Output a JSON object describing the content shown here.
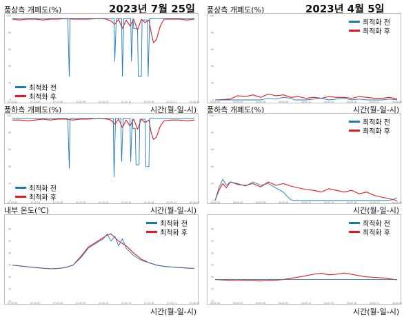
{
  "colors": {
    "before": "#1f77b4",
    "after": "#e8171f",
    "frame": "#bdbdbd"
  },
  "dates": [
    "2023년 7월 25일",
    "2023년 4월 5일"
  ],
  "legend": [
    "최적화 전",
    "최적화 후"
  ],
  "xlabel": "시간(월-일-시)",
  "chart_data": [
    {
      "type": "line",
      "title": "풍상측 개폐도(%)",
      "xlabel": "시간(월-일-시)",
      "ylim": [
        0,
        100
      ],
      "x_ticks": [
        "07-25 00",
        "07-25 03",
        "07-25 06",
        "07-25 09",
        "07-25 12",
        "07-25 15",
        "07-25 18",
        "07-25 21",
        "07-26 00"
      ],
      "y_ticks": [
        0,
        20,
        40,
        60,
        80,
        100
      ],
      "series": [
        {
          "name": "최적화 전",
          "x": [
            0,
            7.2,
            7.3,
            7.5,
            7.6,
            12,
            13.4,
            13.5,
            13.7,
            13.8,
            14.4,
            14.5,
            14.7,
            14.8,
            15.6,
            15.7,
            15.9,
            16,
            16.5,
            16.6,
            17,
            17.1,
            17.8,
            17.9,
            18.1,
            18.2,
            19,
            24
          ],
          "y": [
            97,
            97,
            97,
            28,
            97,
            97,
            97,
            46,
            97,
            97,
            97,
            28,
            97,
            97,
            97,
            46,
            97,
            85,
            85,
            28,
            28,
            95,
            95,
            28,
            97,
            97,
            97,
            97
          ]
        },
        {
          "name": "최적화 후",
          "x": [
            0,
            1,
            2,
            3,
            4,
            5,
            6,
            7,
            8,
            9,
            10,
            11,
            12,
            13,
            13.5,
            14,
            14.5,
            15,
            15.5,
            16,
            16.5,
            17,
            17.5,
            18,
            18.3,
            18.6,
            19,
            19.5,
            20,
            21,
            22,
            23,
            24
          ],
          "y": [
            96,
            95,
            96,
            96,
            95,
            96,
            96,
            97,
            96,
            96,
            96,
            97,
            97,
            94,
            90,
            96,
            85,
            95,
            88,
            96,
            83,
            96,
            92,
            95,
            80,
            68,
            72,
            88,
            96,
            96,
            96,
            95,
            96
          ]
        }
      ]
    },
    {
      "type": "line",
      "title": "풍상측 개폐도(%)",
      "xlabel": "시간(월-일-시)",
      "ylim": [
        0,
        100
      ],
      "x_ticks": [
        "04-05 00",
        "04-05 03",
        "04-05 06",
        "04-05 09",
        "04-05 12",
        "04-05 15",
        "04-05 18",
        "04-05 21",
        "04-06 00"
      ],
      "y_ticks": [
        0,
        20,
        40,
        60,
        80,
        100
      ],
      "series": [
        {
          "name": "최적화 전",
          "x": [
            0,
            6,
            7,
            8,
            9,
            10,
            10.5,
            11,
            12,
            13,
            14,
            15,
            16,
            17,
            18,
            19,
            20,
            21,
            22,
            23,
            24
          ],
          "y": [
            0,
            0,
            2,
            1,
            3,
            2,
            0,
            0,
            0,
            1,
            2,
            0,
            1,
            2,
            0,
            1,
            0,
            0,
            0,
            1,
            0
          ]
        },
        {
          "name": "최적화 후",
          "x": [
            0,
            2,
            3,
            4,
            5,
            6,
            7,
            8,
            9,
            10,
            11,
            12,
            13,
            14,
            15,
            16,
            17,
            18,
            19,
            20,
            21,
            22,
            23,
            24
          ],
          "y": [
            0,
            1,
            5,
            4,
            6,
            3,
            7,
            5,
            6,
            3,
            4,
            2,
            3,
            2,
            4,
            3,
            3,
            2,
            4,
            3,
            2,
            2,
            3,
            1
          ]
        }
      ]
    },
    {
      "type": "line",
      "title": "풍하측 개폐도(%)",
      "xlabel": "시간(월-일-시)",
      "ylim": [
        0,
        100
      ],
      "x_ticks": [
        "07-25 00",
        "07-25 03",
        "07-25 06",
        "07-25 09",
        "07-25 12",
        "07-25 15",
        "07-25 18",
        "07-25 21",
        "07-26 00"
      ],
      "y_ticks": [
        0,
        20,
        40,
        60,
        80,
        100
      ],
      "series": [
        {
          "name": "최적화 전",
          "x": [
            0,
            7.2,
            7.3,
            7.5,
            7.6,
            13,
            13.3,
            13.4,
            13.6,
            13.7,
            14.3,
            14.4,
            14.6,
            14.7,
            15.5,
            15.6,
            15.8,
            15.9,
            16.2,
            16.3,
            16.7,
            16.8,
            17.5,
            17.6,
            18,
            18.1,
            19,
            24
          ],
          "y": [
            97,
            97,
            97,
            38,
            97,
            97,
            97,
            28,
            97,
            97,
            97,
            46,
            97,
            97,
            97,
            46,
            97,
            85,
            85,
            42,
            42,
            96,
            96,
            40,
            40,
            97,
            97,
            97
          ]
        },
        {
          "name": "최적화 후",
          "x": [
            0,
            1,
            2,
            3,
            4,
            5,
            6,
            7,
            8,
            9,
            10,
            11,
            12,
            13,
            13.5,
            14,
            14.5,
            15,
            15.5,
            16,
            16.5,
            17,
            17.5,
            18,
            18.3,
            18.6,
            19,
            19.5,
            20,
            21,
            22,
            23,
            24
          ],
          "y": [
            95,
            95,
            94,
            95,
            96,
            95,
            96,
            96,
            95,
            96,
            96,
            97,
            97,
            95,
            90,
            96,
            86,
            95,
            88,
            96,
            84,
            96,
            92,
            95,
            80,
            72,
            75,
            88,
            94,
            95,
            95,
            94,
            95
          ]
        }
      ]
    },
    {
      "type": "line",
      "title": "풍하측 개폐도(%)",
      "xlabel": "시간(월-일-시)",
      "ylim": [
        0,
        100
      ],
      "x_ticks": [
        "04-05 00",
        "04-05 03",
        "04-05 06",
        "04-05 09",
        "04-05 12",
        "04-05 15",
        "04-05 18",
        "04-05 21",
        "04-06 00"
      ],
      "y_ticks": [
        0,
        20,
        40,
        60,
        80,
        100
      ],
      "series": [
        {
          "name": "최적화 전",
          "x": [
            0,
            0.5,
            1,
            1.5,
            2,
            3,
            4,
            5,
            6,
            7,
            8,
            9,
            9.5,
            10,
            10.5,
            11,
            12,
            13,
            14,
            15,
            16,
            17,
            18,
            19,
            20,
            21,
            22,
            23,
            24
          ],
          "y": [
            0,
            15,
            25,
            18,
            22,
            20,
            17,
            22,
            18,
            20,
            15,
            10,
            5,
            1,
            0,
            0,
            0,
            0,
            0,
            0,
            0,
            0,
            0,
            0,
            0,
            0,
            0,
            0,
            3
          ]
        },
        {
          "name": "최적화 후",
          "x": [
            0,
            0.5,
            1,
            1.5,
            2,
            3,
            4,
            5,
            6,
            7,
            8,
            9,
            10,
            11,
            12,
            13,
            14,
            15,
            16,
            17,
            18,
            19,
            20,
            21,
            22,
            23,
            24
          ],
          "y": [
            0,
            12,
            20,
            15,
            22,
            19,
            18,
            20,
            16,
            22,
            18,
            20,
            17,
            15,
            13,
            12,
            10,
            14,
            12,
            10,
            12,
            8,
            10,
            6,
            4,
            2,
            0
          ]
        }
      ]
    },
    {
      "type": "line",
      "title": "내부 온도(℃)",
      "xlabel": "시간(월-일-시)",
      "ylim": [
        10,
        45
      ],
      "x_ticks": [
        "07-25 00",
        "07-25 03",
        "07-25 06",
        "07-25 09",
        "07-25 12",
        "07-25 15",
        "07-25 18",
        "07-25 21",
        "07-26 00"
      ],
      "y_ticks": [
        10,
        15,
        20,
        25,
        30,
        35,
        40
      ],
      "series": [
        {
          "name": "최적화 전",
          "x": [
            0,
            1,
            2,
            3,
            4,
            5,
            6,
            7,
            8,
            9,
            10,
            11,
            12,
            12.5,
            13,
            13.5,
            14,
            14.5,
            15,
            16,
            17,
            18,
            19,
            20,
            21,
            22,
            23,
            24
          ],
          "y": [
            25,
            24.7,
            24.3,
            24,
            23.7,
            23.5,
            23.6,
            24,
            25,
            28,
            32,
            34,
            36,
            38,
            35,
            37,
            33,
            36,
            32,
            29,
            27,
            26,
            25,
            24.5,
            24.2,
            24,
            23.8,
            23.6
          ]
        },
        {
          "name": "최적화 후",
          "x": [
            0,
            1,
            2,
            3,
            4,
            5,
            6,
            7,
            8,
            9,
            10,
            11,
            12,
            12.5,
            13,
            13.5,
            14,
            14.5,
            15,
            16,
            17,
            18,
            19,
            20,
            21,
            22,
            23,
            24
          ],
          "y": [
            25,
            24.7,
            24.3,
            24,
            23.7,
            23.5,
            23.6,
            24,
            25,
            28.5,
            32.5,
            34.5,
            36.5,
            37.5,
            38,
            36.5,
            35,
            34,
            33,
            30,
            27.5,
            26,
            25,
            24.5,
            24.2,
            24,
            23.8,
            23.6
          ]
        }
      ]
    },
    {
      "type": "line",
      "title": "",
      "xlabel": "시간(월-일-시)",
      "ylim": [
        10,
        45
      ],
      "x_ticks": [
        "04-05 00",
        "04-05 03",
        "04-05 06",
        "04-05 09",
        "04-05 12",
        "04-05 15",
        "04-05 18",
        "04-05 21",
        "04-06 00"
      ],
      "y_ticks": [
        10,
        15,
        20,
        25,
        30,
        35,
        40
      ],
      "series": [
        {
          "name": "최적화 전",
          "x": [
            0,
            24
          ],
          "y": [
            19,
            19
          ]
        },
        {
          "name": "최적화 후",
          "x": [
            0,
            1,
            2,
            3,
            4,
            5,
            6,
            7,
            8,
            9,
            10,
            11,
            12,
            13,
            14,
            15,
            16,
            17,
            18,
            19,
            20,
            21,
            22,
            23,
            24
          ],
          "y": [
            19,
            18.8,
            18.7,
            18.6,
            18.5,
            18.5,
            18.4,
            18.5,
            18.7,
            19,
            19.5,
            20,
            20.6,
            21.2,
            21.6,
            21,
            21.2,
            21.7,
            21.2,
            20.6,
            20.1,
            19.9,
            19.7,
            19.3,
            18.9
          ]
        }
      ]
    }
  ]
}
